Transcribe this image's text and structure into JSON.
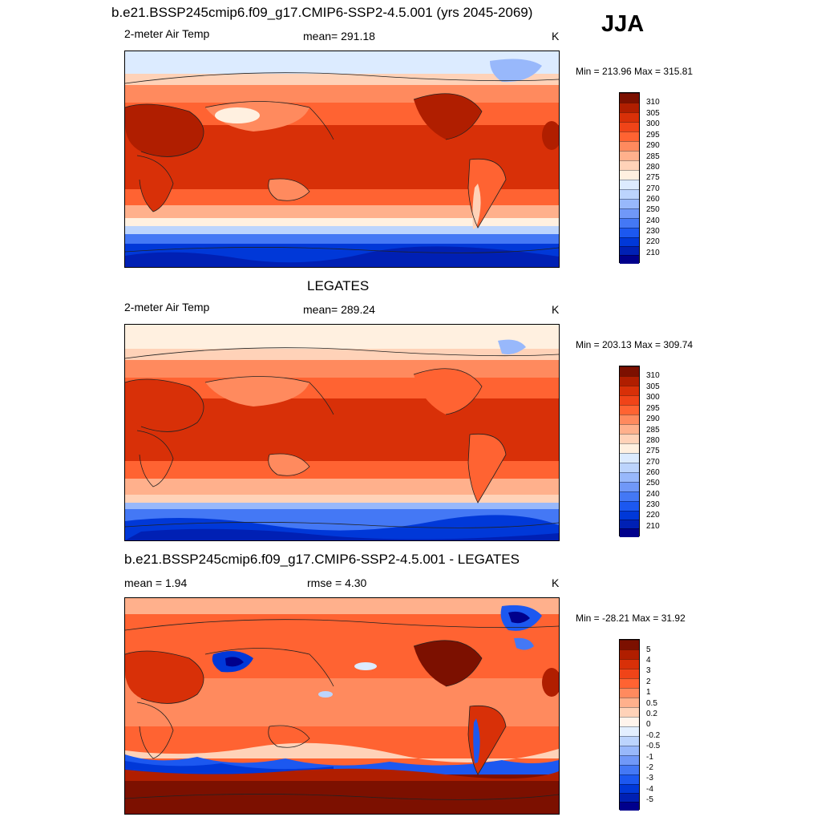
{
  "season": "JJA",
  "colors": {
    "temp_scale": [
      "#00008c",
      "#0020b4",
      "#0038d8",
      "#1c58f0",
      "#4478f5",
      "#7098f8",
      "#98b8fb",
      "#bcd4fd",
      "#dcebff",
      "#fff0e0",
      "#ffd2b8",
      "#ffb08c",
      "#ff8a5e",
      "#ff6332",
      "#f04418",
      "#d83008",
      "#b01e00",
      "#7c1000"
    ],
    "diff_scale": [
      "#00008c",
      "#0020b4",
      "#0038d8",
      "#1c58f0",
      "#4478f5",
      "#7098f8",
      "#98b8fb",
      "#bcd4fd",
      "#e3efff",
      "#fff4ec",
      "#ffd2b8",
      "#ffb08c",
      "#ff8a5e",
      "#ff6332",
      "#f04418",
      "#d83008",
      "#b01e00",
      "#7c1000"
    ]
  },
  "panels": [
    {
      "title": "b.e21.BSSP245cmip6.f09_g17.CMIP6-SSP2-4.5.001 (yrs 2045-2069)",
      "left_label": "2-meter Air Temp",
      "center_label": "mean= 291.18",
      "unit": "K",
      "minmax": "Min = 213.96 Max = 315.81",
      "colorbar_ticks": [
        "310",
        "305",
        "300",
        "295",
        "290",
        "285",
        "280",
        "275",
        "270",
        "260",
        "250",
        "240",
        "230",
        "220",
        "210"
      ]
    },
    {
      "title": "LEGATES",
      "left_label": "2-meter Air Temp",
      "center_label": "mean= 289.24",
      "unit": "K",
      "minmax": "Min = 203.13 Max = 309.74",
      "colorbar_ticks": [
        "310",
        "305",
        "300",
        "295",
        "290",
        "285",
        "280",
        "275",
        "270",
        "260",
        "250",
        "240",
        "230",
        "220",
        "210"
      ]
    },
    {
      "title": "b.e21.BSSP245cmip6.f09_g17.CMIP6-SSP2-4.5.001 - LEGATES",
      "left_label": "mean =   1.94",
      "center_label": "rmse =   4.30",
      "unit": "K",
      "minmax": "Min = -28.21 Max =  31.92",
      "colorbar_ticks": [
        "5",
        "4",
        "3",
        "2",
        "1",
        "0.5",
        "0.2",
        "0",
        "-0.2",
        "-0.5",
        "-1",
        "-2",
        "-3",
        "-4",
        "-5"
      ]
    }
  ]
}
